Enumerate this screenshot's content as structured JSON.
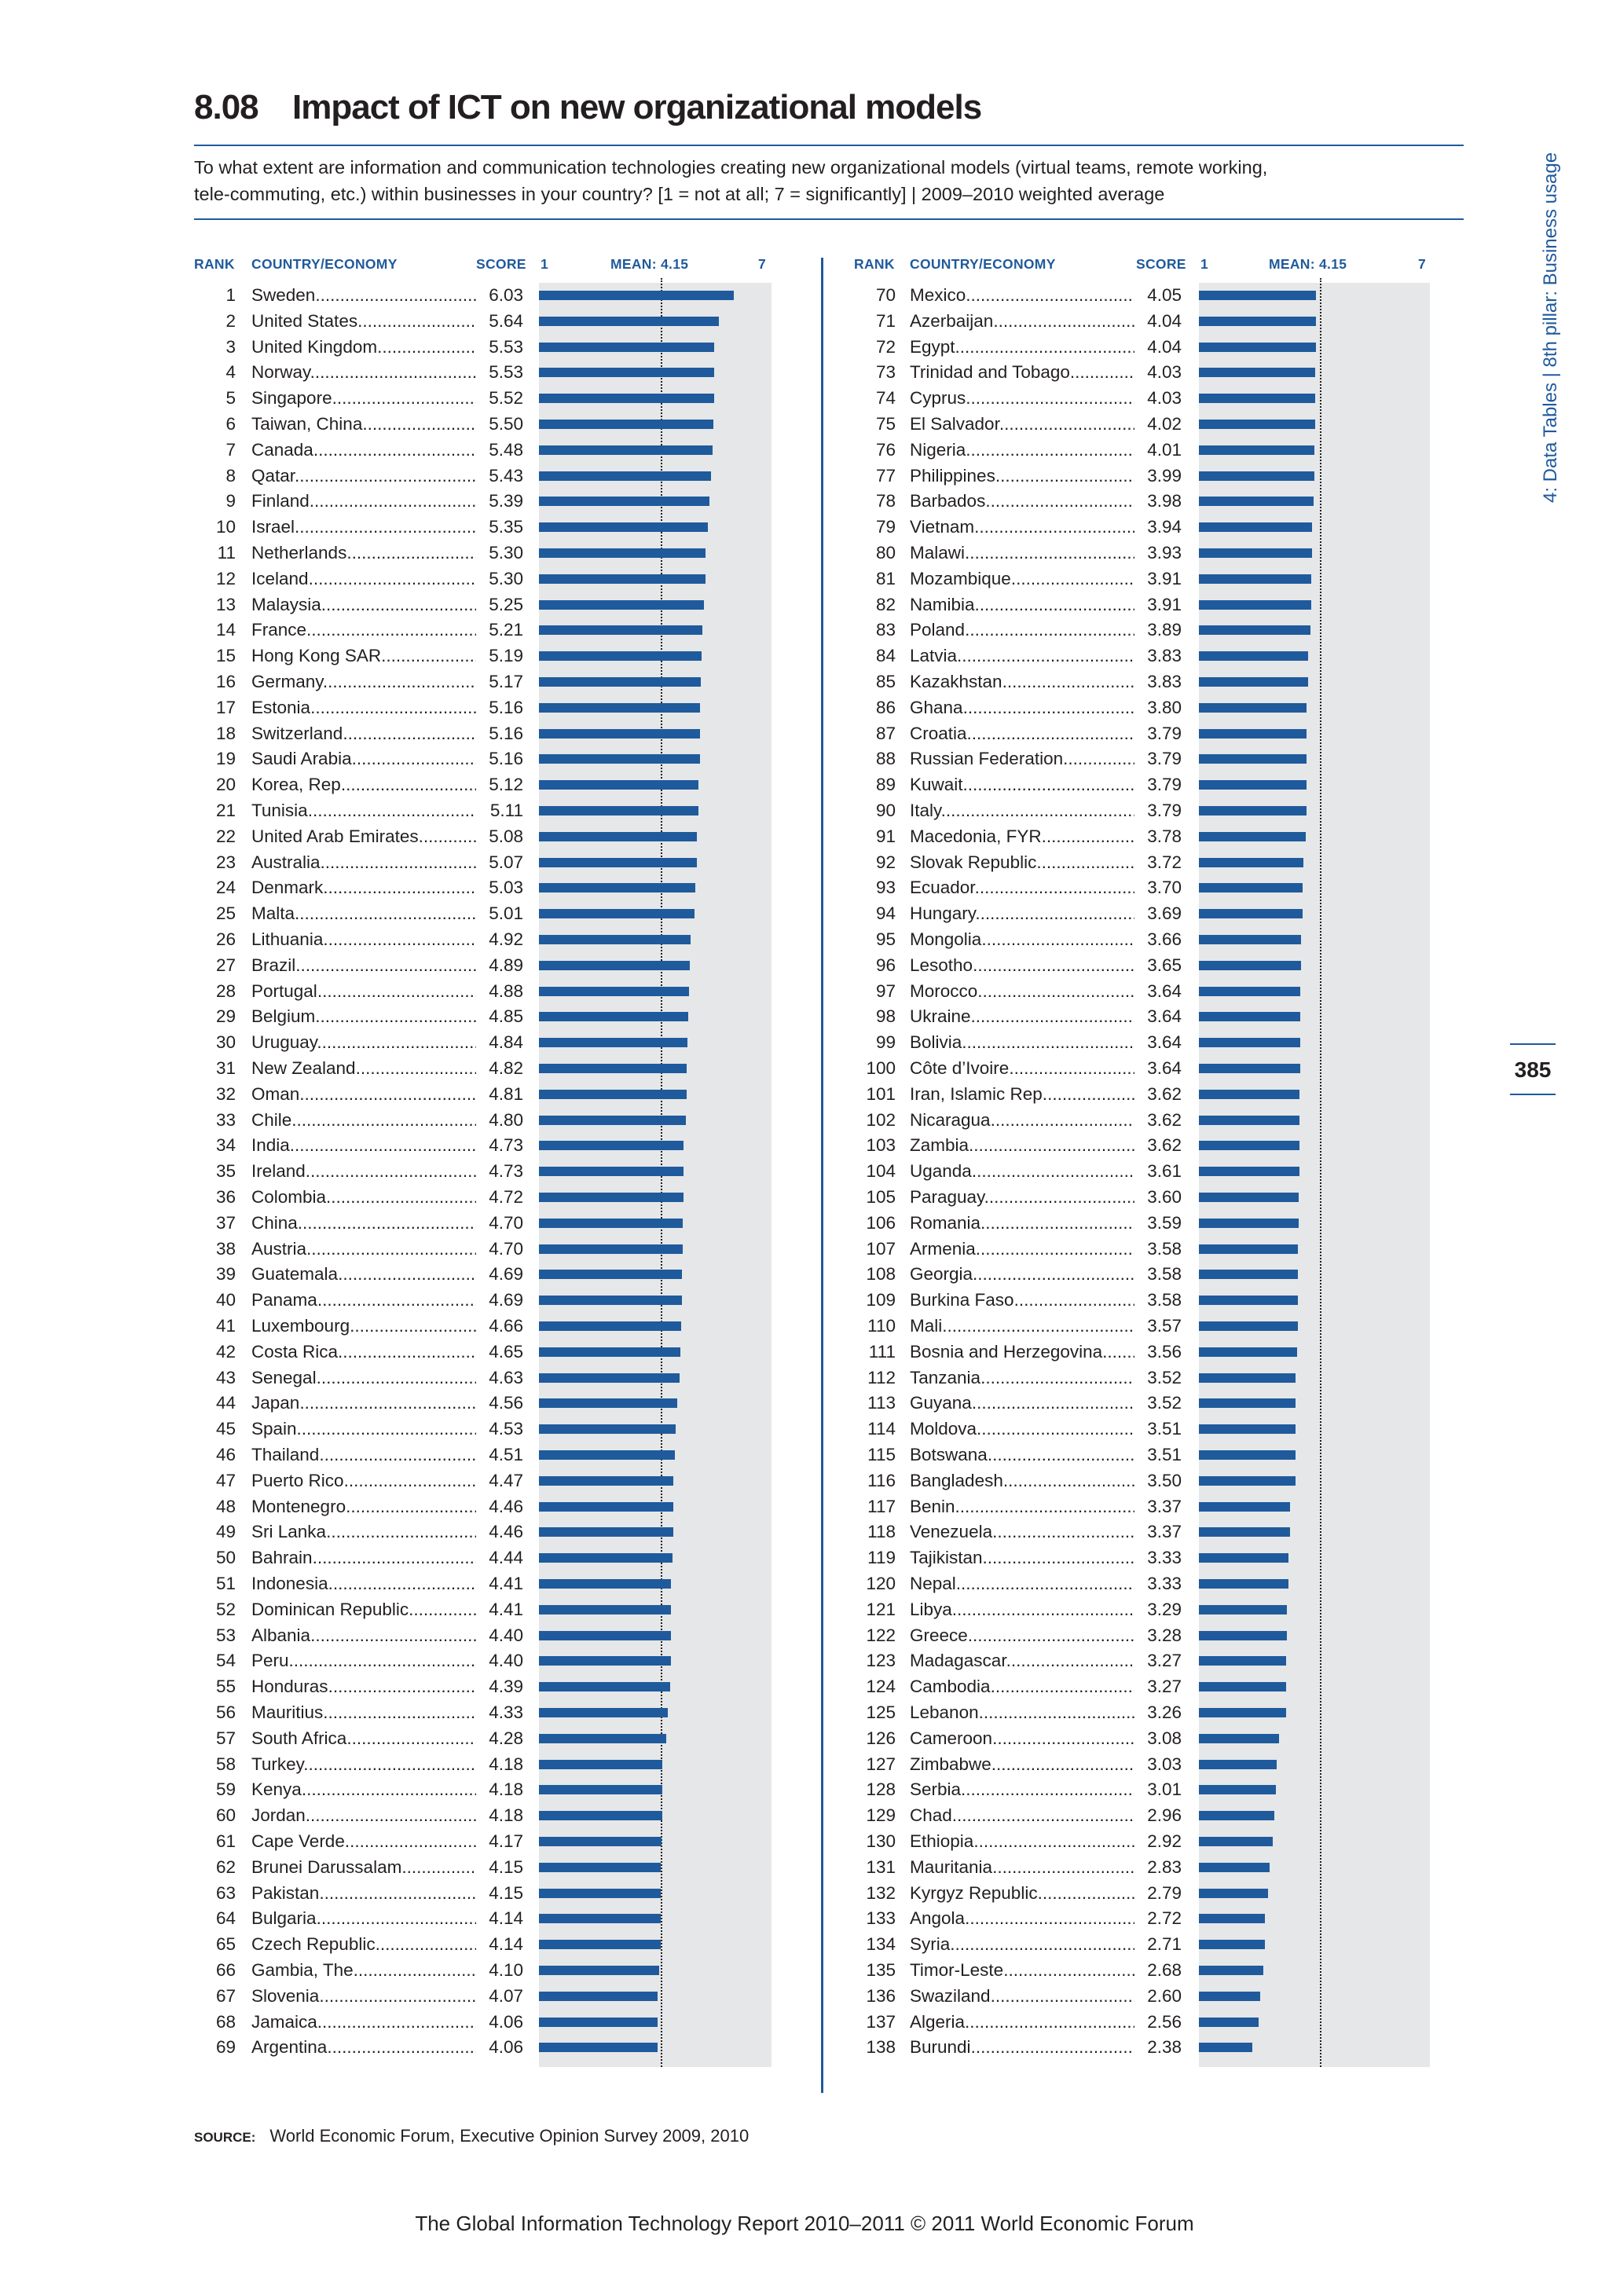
{
  "header": {
    "number": "8.08",
    "title": "Impact of ICT on new organizational models",
    "question_line1": "To what extent are information and communication technologies creating new organizational models (virtual teams, remote working,",
    "question_line2": "tele-commuting, etc.) within businesses in your country? [1 = not at all; 7 = significantly]  |  2009–2010 weighted average"
  },
  "sidebar": {
    "section": "4: Data Tables  |  8th pillar: Business usage",
    "page_number": "385"
  },
  "columns": {
    "rank": "RANK",
    "country": "COUNTRY/ECONOMY",
    "score": "SCORE",
    "axis_min": "1",
    "mean_label": "MEAN: 4.15",
    "axis_max": "7"
  },
  "source": {
    "label": "SOURCE:",
    "text": "World Economic Forum, Executive Opinion Survey 2009, 2010"
  },
  "footer": "The Global Information Technology Report 2010–2011 © 2011 World Economic Forum",
  "chart_data": {
    "type": "bar",
    "orientation": "horizontal",
    "xlim": [
      1,
      7
    ],
    "mean": 4.15,
    "colors": {
      "bar": "#1f5a9c",
      "background": "#e6e7e8"
    },
    "rows": [
      {
        "rank": "1",
        "country": "Sweden",
        "score": "6.03"
      },
      {
        "rank": "2",
        "country": "United States",
        "score": "5.64"
      },
      {
        "rank": "3",
        "country": "United Kingdom",
        "score": "5.53"
      },
      {
        "rank": "4",
        "country": "Norway",
        "score": "5.53"
      },
      {
        "rank": "5",
        "country": "Singapore",
        "score": "5.52"
      },
      {
        "rank": "6",
        "country": "Taiwan, China",
        "score": "5.50"
      },
      {
        "rank": "7",
        "country": "Canada",
        "score": "5.48"
      },
      {
        "rank": "8",
        "country": "Qatar",
        "score": "5.43"
      },
      {
        "rank": "9",
        "country": "Finland",
        "score": "5.39"
      },
      {
        "rank": "10",
        "country": "Israel",
        "score": "5.35"
      },
      {
        "rank": "11",
        "country": "Netherlands",
        "score": "5.30"
      },
      {
        "rank": "12",
        "country": "Iceland",
        "score": "5.30"
      },
      {
        "rank": "13",
        "country": "Malaysia",
        "score": "5.25"
      },
      {
        "rank": "14",
        "country": "France",
        "score": "5.21"
      },
      {
        "rank": "15",
        "country": "Hong Kong SAR",
        "score": "5.19"
      },
      {
        "rank": "16",
        "country": "Germany",
        "score": "5.17"
      },
      {
        "rank": "17",
        "country": "Estonia",
        "score": "5.16"
      },
      {
        "rank": "18",
        "country": "Switzerland",
        "score": "5.16"
      },
      {
        "rank": "19",
        "country": "Saudi Arabia",
        "score": "5.16"
      },
      {
        "rank": "20",
        "country": "Korea, Rep.",
        "score": "5.12"
      },
      {
        "rank": "21",
        "country": "Tunisia",
        "score": "5.11"
      },
      {
        "rank": "22",
        "country": "United Arab Emirates",
        "score": "5.08"
      },
      {
        "rank": "23",
        "country": "Australia",
        "score": "5.07"
      },
      {
        "rank": "24",
        "country": "Denmark",
        "score": "5.03"
      },
      {
        "rank": "25",
        "country": "Malta",
        "score": "5.01"
      },
      {
        "rank": "26",
        "country": "Lithuania",
        "score": "4.92"
      },
      {
        "rank": "27",
        "country": "Brazil",
        "score": "4.89"
      },
      {
        "rank": "28",
        "country": "Portugal",
        "score": "4.88"
      },
      {
        "rank": "29",
        "country": "Belgium",
        "score": "4.85"
      },
      {
        "rank": "30",
        "country": "Uruguay",
        "score": "4.84"
      },
      {
        "rank": "31",
        "country": "New Zealand",
        "score": "4.82"
      },
      {
        "rank": "32",
        "country": "Oman",
        "score": "4.81"
      },
      {
        "rank": "33",
        "country": "Chile",
        "score": "4.80"
      },
      {
        "rank": "34",
        "country": "India",
        "score": "4.73"
      },
      {
        "rank": "35",
        "country": "Ireland",
        "score": "4.73"
      },
      {
        "rank": "36",
        "country": "Colombia",
        "score": "4.72"
      },
      {
        "rank": "37",
        "country": "China",
        "score": "4.70"
      },
      {
        "rank": "38",
        "country": "Austria",
        "score": "4.70"
      },
      {
        "rank": "39",
        "country": "Guatemala",
        "score": "4.69"
      },
      {
        "rank": "40",
        "country": "Panama",
        "score": "4.69"
      },
      {
        "rank": "41",
        "country": "Luxembourg",
        "score": "4.66"
      },
      {
        "rank": "42",
        "country": "Costa Rica",
        "score": "4.65"
      },
      {
        "rank": "43",
        "country": "Senegal",
        "score": "4.63"
      },
      {
        "rank": "44",
        "country": "Japan",
        "score": "4.56"
      },
      {
        "rank": "45",
        "country": "Spain",
        "score": "4.53"
      },
      {
        "rank": "46",
        "country": "Thailand",
        "score": "4.51"
      },
      {
        "rank": "47",
        "country": "Puerto Rico",
        "score": "4.47"
      },
      {
        "rank": "48",
        "country": "Montenegro",
        "score": "4.46"
      },
      {
        "rank": "49",
        "country": "Sri Lanka",
        "score": "4.46"
      },
      {
        "rank": "50",
        "country": "Bahrain",
        "score": "4.44"
      },
      {
        "rank": "51",
        "country": "Indonesia",
        "score": "4.41"
      },
      {
        "rank": "52",
        "country": "Dominican Republic",
        "score": "4.41"
      },
      {
        "rank": "53",
        "country": "Albania",
        "score": "4.40"
      },
      {
        "rank": "54",
        "country": "Peru",
        "score": "4.40"
      },
      {
        "rank": "55",
        "country": "Honduras",
        "score": "4.39"
      },
      {
        "rank": "56",
        "country": "Mauritius",
        "score": "4.33"
      },
      {
        "rank": "57",
        "country": "South Africa",
        "score": "4.28"
      },
      {
        "rank": "58",
        "country": "Turkey",
        "score": "4.18"
      },
      {
        "rank": "59",
        "country": "Kenya",
        "score": "4.18"
      },
      {
        "rank": "60",
        "country": "Jordan",
        "score": "4.18"
      },
      {
        "rank": "61",
        "country": "Cape Verde",
        "score": "4.17"
      },
      {
        "rank": "62",
        "country": "Brunei Darussalam",
        "score": "4.15"
      },
      {
        "rank": "63",
        "country": "Pakistan",
        "score": "4.15"
      },
      {
        "rank": "64",
        "country": "Bulgaria",
        "score": "4.14"
      },
      {
        "rank": "65",
        "country": "Czech Republic",
        "score": "4.14"
      },
      {
        "rank": "66",
        "country": "Gambia, The",
        "score": "4.10"
      },
      {
        "rank": "67",
        "country": "Slovenia",
        "score": "4.07"
      },
      {
        "rank": "68",
        "country": "Jamaica",
        "score": "4.06"
      },
      {
        "rank": "69",
        "country": "Argentina",
        "score": "4.06"
      },
      {
        "rank": "70",
        "country": "Mexico",
        "score": "4.05"
      },
      {
        "rank": "71",
        "country": "Azerbaijan",
        "score": "4.04"
      },
      {
        "rank": "72",
        "country": "Egypt",
        "score": "4.04"
      },
      {
        "rank": "73",
        "country": "Trinidad and Tobago",
        "score": "4.03"
      },
      {
        "rank": "74",
        "country": "Cyprus",
        "score": "4.03"
      },
      {
        "rank": "75",
        "country": "El Salvador",
        "score": "4.02"
      },
      {
        "rank": "76",
        "country": "Nigeria",
        "score": "4.01"
      },
      {
        "rank": "77",
        "country": "Philippines",
        "score": "3.99"
      },
      {
        "rank": "78",
        "country": "Barbados",
        "score": "3.98"
      },
      {
        "rank": "79",
        "country": "Vietnam",
        "score": "3.94"
      },
      {
        "rank": "80",
        "country": "Malawi",
        "score": "3.93"
      },
      {
        "rank": "81",
        "country": "Mozambique",
        "score": "3.91"
      },
      {
        "rank": "82",
        "country": "Namibia",
        "score": "3.91"
      },
      {
        "rank": "83",
        "country": "Poland",
        "score": "3.89"
      },
      {
        "rank": "84",
        "country": "Latvia",
        "score": "3.83"
      },
      {
        "rank": "85",
        "country": "Kazakhstan",
        "score": "3.83"
      },
      {
        "rank": "86",
        "country": "Ghana",
        "score": "3.80"
      },
      {
        "rank": "87",
        "country": "Croatia",
        "score": "3.79"
      },
      {
        "rank": "88",
        "country": "Russian Federation",
        "score": "3.79"
      },
      {
        "rank": "89",
        "country": "Kuwait",
        "score": "3.79"
      },
      {
        "rank": "90",
        "country": "Italy",
        "score": "3.79"
      },
      {
        "rank": "91",
        "country": "Macedonia, FYR",
        "score": "3.78"
      },
      {
        "rank": "92",
        "country": "Slovak Republic",
        "score": "3.72"
      },
      {
        "rank": "93",
        "country": "Ecuador",
        "score": "3.70"
      },
      {
        "rank": "94",
        "country": "Hungary",
        "score": "3.69"
      },
      {
        "rank": "95",
        "country": "Mongolia",
        "score": "3.66"
      },
      {
        "rank": "96",
        "country": "Lesotho",
        "score": "3.65"
      },
      {
        "rank": "97",
        "country": "Morocco",
        "score": "3.64"
      },
      {
        "rank": "98",
        "country": "Ukraine",
        "score": "3.64"
      },
      {
        "rank": "99",
        "country": "Bolivia",
        "score": "3.64"
      },
      {
        "rank": "100",
        "country": "Côte d’Ivoire",
        "score": "3.64"
      },
      {
        "rank": "101",
        "country": "Iran, Islamic Rep.",
        "score": "3.62"
      },
      {
        "rank": "102",
        "country": "Nicaragua",
        "score": "3.62"
      },
      {
        "rank": "103",
        "country": "Zambia",
        "score": "3.62"
      },
      {
        "rank": "104",
        "country": "Uganda",
        "score": "3.61"
      },
      {
        "rank": "105",
        "country": "Paraguay",
        "score": "3.60"
      },
      {
        "rank": "106",
        "country": "Romania",
        "score": "3.59"
      },
      {
        "rank": "107",
        "country": "Armenia",
        "score": "3.58"
      },
      {
        "rank": "108",
        "country": "Georgia",
        "score": "3.58"
      },
      {
        "rank": "109",
        "country": "Burkina Faso",
        "score": "3.58"
      },
      {
        "rank": "110",
        "country": "Mali",
        "score": "3.57"
      },
      {
        "rank": "111",
        "country": "Bosnia and Herzegovina",
        "score": "3.56"
      },
      {
        "rank": "112",
        "country": "Tanzania",
        "score": "3.52"
      },
      {
        "rank": "113",
        "country": "Guyana",
        "score": "3.52"
      },
      {
        "rank": "114",
        "country": "Moldova",
        "score": "3.51"
      },
      {
        "rank": "115",
        "country": "Botswana",
        "score": "3.51"
      },
      {
        "rank": "116",
        "country": "Bangladesh",
        "score": "3.50"
      },
      {
        "rank": "117",
        "country": "Benin",
        "score": "3.37"
      },
      {
        "rank": "118",
        "country": "Venezuela",
        "score": "3.37"
      },
      {
        "rank": "119",
        "country": "Tajikistan",
        "score": "3.33"
      },
      {
        "rank": "120",
        "country": "Nepal",
        "score": "3.33"
      },
      {
        "rank": "121",
        "country": "Libya",
        "score": "3.29"
      },
      {
        "rank": "122",
        "country": "Greece",
        "score": "3.28"
      },
      {
        "rank": "123",
        "country": "Madagascar",
        "score": "3.27"
      },
      {
        "rank": "124",
        "country": "Cambodia",
        "score": "3.27"
      },
      {
        "rank": "125",
        "country": "Lebanon",
        "score": "3.26"
      },
      {
        "rank": "126",
        "country": "Cameroon",
        "score": "3.08"
      },
      {
        "rank": "127",
        "country": "Zimbabwe",
        "score": "3.03"
      },
      {
        "rank": "128",
        "country": "Serbia",
        "score": "3.01"
      },
      {
        "rank": "129",
        "country": "Chad",
        "score": "2.96"
      },
      {
        "rank": "130",
        "country": "Ethiopia",
        "score": "2.92"
      },
      {
        "rank": "131",
        "country": "Mauritania",
        "score": "2.83"
      },
      {
        "rank": "132",
        "country": "Kyrgyz Republic",
        "score": "2.79"
      },
      {
        "rank": "133",
        "country": "Angola",
        "score": "2.72"
      },
      {
        "rank": "134",
        "country": "Syria",
        "score": "2.71"
      },
      {
        "rank": "135",
        "country": "Timor-Leste",
        "score": "2.68"
      },
      {
        "rank": "136",
        "country": "Swaziland",
        "score": "2.60"
      },
      {
        "rank": "137",
        "country": "Algeria",
        "score": "2.56"
      },
      {
        "rank": "138",
        "country": "Burundi",
        "score": "2.38"
      }
    ]
  }
}
